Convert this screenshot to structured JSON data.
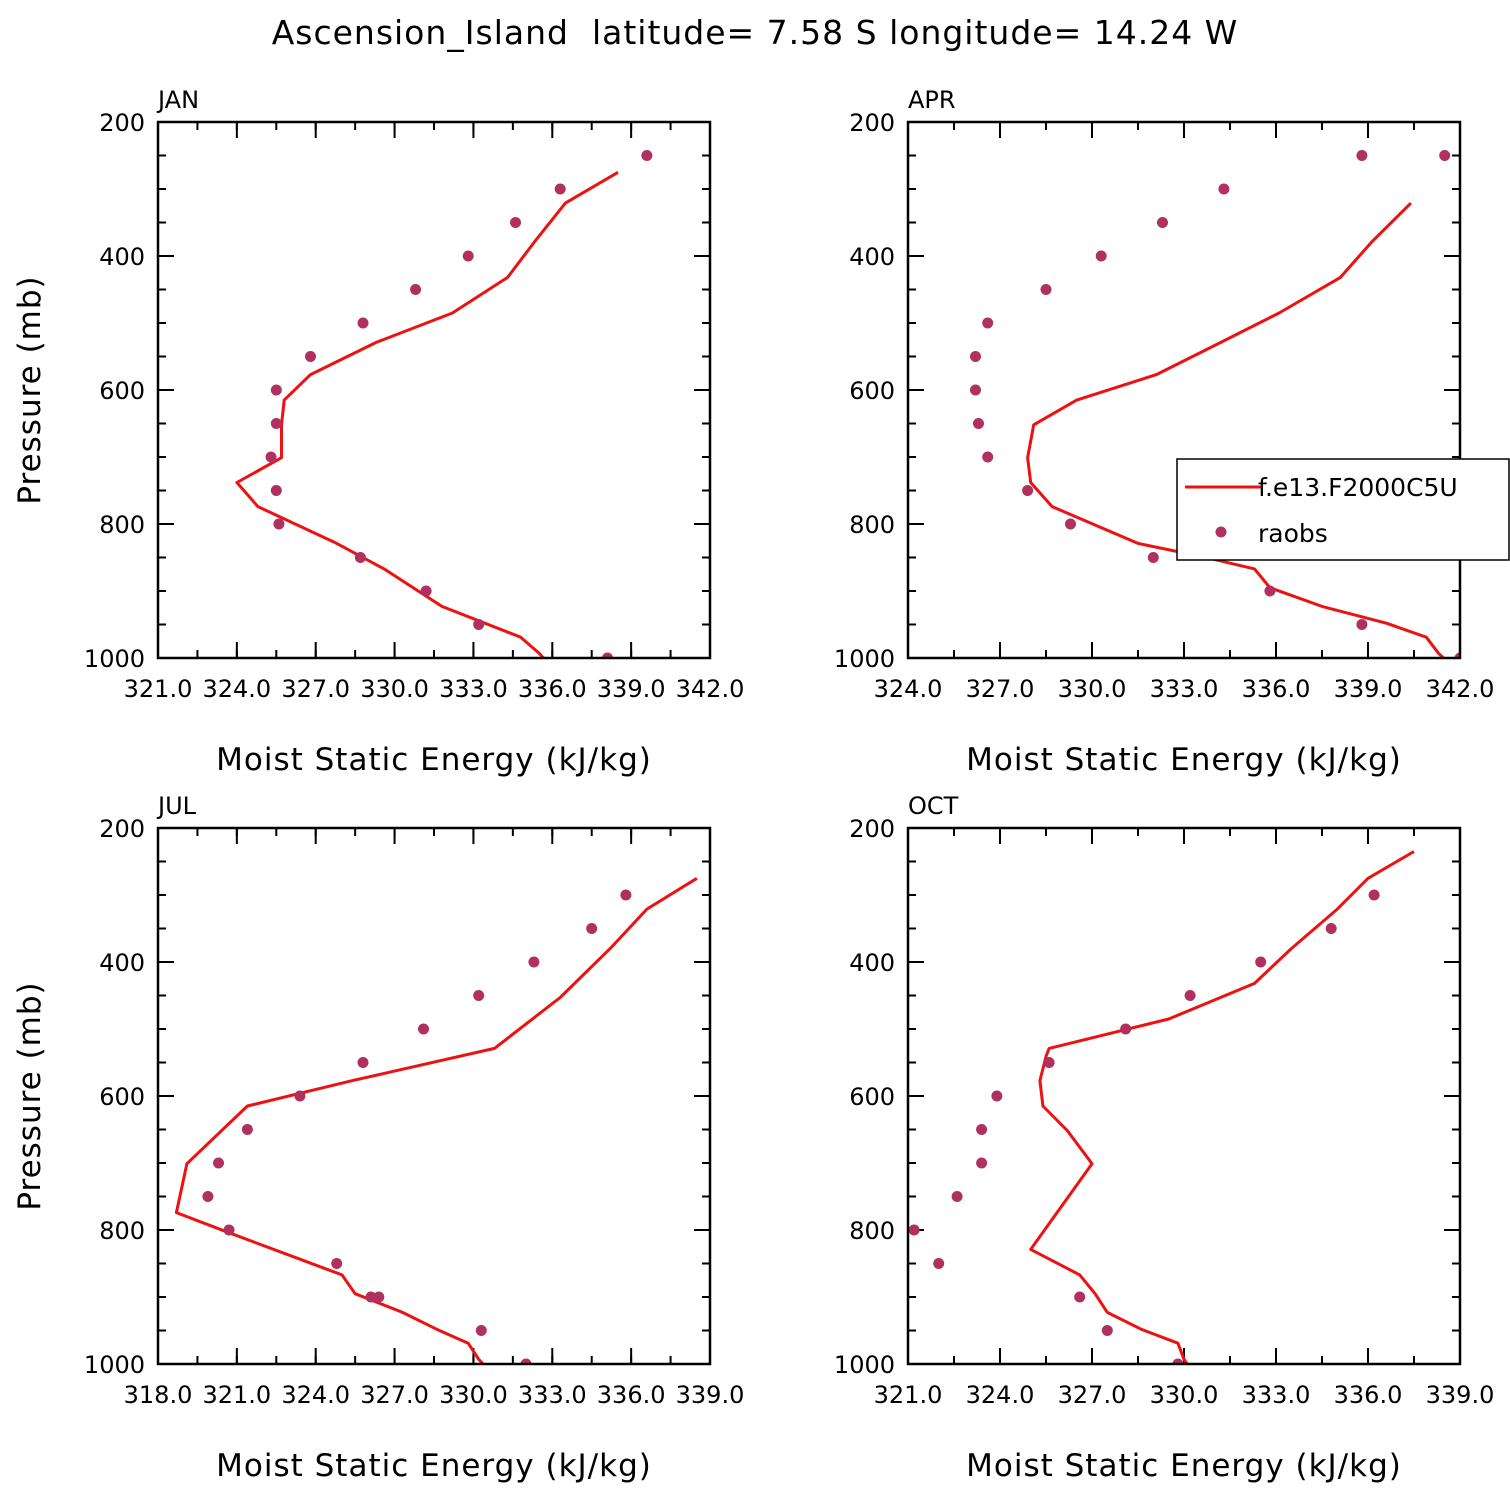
{
  "title": "Ascension_Island  latitude= 7.58 S longitude= 14.24 W",
  "chart_data": [
    {
      "type": "line",
      "title": "JAN",
      "xlabel": "Moist Static Energy (kJ/kg)",
      "ylabel": "Pressure (mb)",
      "xlim": [
        321.0,
        342.0
      ],
      "ylim": [
        1000,
        200
      ],
      "x_ticks": [
        "321.0",
        "324.0",
        "327.0",
        "330.0",
        "333.0",
        "336.0",
        "339.0",
        "342.0"
      ],
      "y_ticks": [
        "200",
        "400",
        "600",
        "800",
        "1000"
      ],
      "legend": null,
      "series": [
        {
          "kind": "line",
          "color": "#ee1111",
          "x": [
            335.8,
            335.5,
            334.8,
            331.8,
            329.6,
            327.8,
            324.8,
            324.0,
            325.7,
            325.7,
            325.8,
            326.8,
            329.3,
            332.2,
            334.3,
            335.3,
            336.5,
            338.5
          ],
          "y": [
            1006,
            993,
            969,
            923,
            867,
            829,
            774,
            738,
            701,
            652,
            615,
            577,
            529,
            485,
            432,
            380,
            321,
            275
          ]
        },
        {
          "kind": "scatter",
          "color": "#b03060",
          "x": [
            338.1,
            333.2,
            331.2,
            328.7,
            325.6,
            325.5,
            325.3,
            325.5,
            325.5,
            326.8,
            328.8,
            330.8,
            332.8,
            334.6,
            336.3,
            339.6
          ],
          "y": [
            1000,
            950,
            900,
            850,
            800,
            750,
            700,
            650,
            600,
            550,
            500,
            450,
            400,
            350,
            300,
            250
          ]
        }
      ]
    },
    {
      "type": "line",
      "title": "APR",
      "xlabel": "Moist Static Energy (kJ/kg)",
      "ylabel": "",
      "xlim": [
        324.0,
        342.0
      ],
      "ylim": [
        1000,
        200
      ],
      "x_ticks": [
        "324.0",
        "327.0",
        "330.0",
        "333.0",
        "336.0",
        "339.0",
        "342.0"
      ],
      "y_ticks": [
        "200",
        "400",
        "600",
        "800",
        "1000"
      ],
      "legend": {
        "position": "right",
        "entries": [
          "f.e13.F2000C5U",
          "raobs"
        ]
      },
      "series": [
        {
          "kind": "line",
          "name": "f.e13.F2000C5U",
          "color": "#ee1111",
          "x": [
            341.6,
            341.3,
            340.9,
            339.6,
            337.5,
            335.8,
            335.3,
            333.9,
            333.2,
            331.5,
            328.7,
            328.0,
            327.9,
            328.1,
            329.5,
            332.1,
            334.2,
            336.1,
            338.1,
            339.1,
            340.4
          ],
          "y": [
            1006,
            993,
            969,
            948,
            923,
            895,
            867,
            852,
            845,
            829,
            774,
            738,
            701,
            652,
            615,
            577,
            529,
            485,
            432,
            380,
            321
          ]
        },
        {
          "kind": "scatter",
          "name": "raobs",
          "color": "#b03060",
          "x": [
            342.0,
            338.8,
            335.8,
            332.0,
            329.3,
            327.9,
            326.6,
            326.3,
            326.2,
            326.2,
            326.6,
            328.5,
            330.3,
            332.3,
            334.3,
            338.8,
            341.5
          ],
          "y": [
            1000,
            950,
            900,
            850,
            800,
            750,
            700,
            650,
            600,
            550,
            500,
            450,
            400,
            350,
            300,
            250,
            250
          ]
        }
      ]
    },
    {
      "type": "line",
      "title": "JUL",
      "xlabel": "Moist Static Energy (kJ/kg)",
      "ylabel": "Pressure (mb)",
      "xlim": [
        318.0,
        339.0
      ],
      "ylim": [
        1000,
        200
      ],
      "x_ticks": [
        "318.0",
        "321.0",
        "324.0",
        "327.0",
        "330.0",
        "333.0",
        "336.0",
        "339.0"
      ],
      "y_ticks": [
        "200",
        "400",
        "600",
        "800",
        "1000"
      ],
      "legend": null,
      "series": [
        {
          "kind": "line",
          "color": "#ee1111",
          "x": [
            330.5,
            330.2,
            329.8,
            328.6,
            327.3,
            325.5,
            325.0,
            323.5,
            320.7,
            318.7,
            319.1,
            321.4,
            325.4,
            330.8,
            333.3,
            335.2,
            336.6,
            338.5
          ],
          "y": [
            1006,
            993,
            969,
            948,
            923,
            895,
            867,
            845,
            804,
            774,
            701,
            615,
            577,
            529,
            453,
            380,
            321,
            275
          ]
        },
        {
          "kind": "scatter",
          "color": "#b03060",
          "x": [
            332.0,
            330.3,
            326.4,
            326.1,
            324.8,
            320.7,
            319.9,
            320.3,
            321.4,
            323.4,
            325.8,
            328.1,
            330.2,
            332.3,
            334.5,
            335.8
          ],
          "y": [
            1000,
            950,
            900,
            900,
            850,
            800,
            750,
            700,
            650,
            600,
            550,
            500,
            450,
            400,
            350,
            300
          ]
        }
      ]
    },
    {
      "type": "line",
      "title": "OCT",
      "xlabel": "Moist Static Energy (kJ/kg)",
      "ylabel": "",
      "xlim": [
        321.0,
        339.0
      ],
      "ylim": [
        1000,
        200
      ],
      "x_ticks": [
        "321.0",
        "324.0",
        "327.0",
        "330.0",
        "333.0",
        "336.0",
        "339.0"
      ],
      "y_ticks": [
        "200",
        "400",
        "600",
        "800",
        "1000"
      ],
      "legend": null,
      "series": [
        {
          "kind": "line",
          "color": "#ee1111",
          "x": [
            330.2,
            330.0,
            329.8,
            328.6,
            327.5,
            327.1,
            326.6,
            325.0,
            327.0,
            326.2,
            325.4,
            325.3,
            325.5,
            325.6,
            329.5,
            332.3,
            333.5,
            335.0,
            336.0,
            337.5
          ],
          "y": [
            1006,
            993,
            969,
            948,
            923,
            895,
            867,
            829,
            701,
            652,
            615,
            577,
            541,
            529,
            485,
            432,
            380,
            321,
            275,
            235
          ]
        },
        {
          "kind": "scatter",
          "color": "#b03060",
          "x": [
            329.8,
            327.5,
            326.6,
            322.0,
            321.2,
            322.6,
            323.4,
            323.4,
            323.9,
            325.6,
            328.1,
            330.2,
            332.5,
            334.8,
            336.2
          ],
          "y": [
            1000,
            950,
            900,
            850,
            800,
            750,
            700,
            650,
            600,
            550,
            500,
            450,
            400,
            350,
            300
          ]
        }
      ]
    }
  ]
}
